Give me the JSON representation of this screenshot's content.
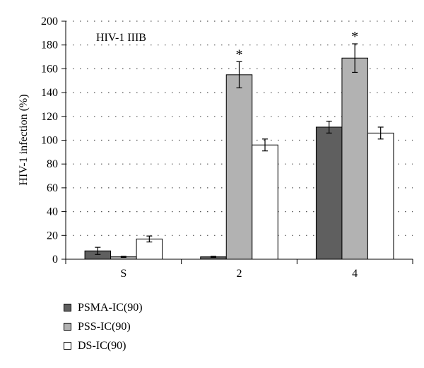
{
  "chart_data": {
    "type": "bar",
    "annotation": "HIV-1 IIIB",
    "ylabel": "HIV-1 infection (%)",
    "xlabel": "",
    "categories": [
      "S",
      "2",
      "4"
    ],
    "ylim": [
      0,
      200
    ],
    "yticks": [
      0,
      20,
      40,
      60,
      80,
      100,
      120,
      140,
      160,
      180,
      200
    ],
    "grid": "horizontal-dotted",
    "legend_position": "bottom-left",
    "significance_marker": "*",
    "series": [
      {
        "name": "PSMA-IC(90)",
        "color": "#5f5f5f",
        "values": [
          7,
          2,
          111
        ],
        "errors": [
          3,
          0.5,
          5
        ]
      },
      {
        "name": "PSS-IC(90)",
        "color": "#b2b2b2",
        "values": [
          2,
          155,
          169
        ],
        "errors": [
          0.5,
          11,
          12
        ]
      },
      {
        "name": "DS-IC(90)",
        "color": "#ffffff",
        "values": [
          17,
          96,
          106
        ],
        "errors": [
          2.5,
          5,
          5
        ]
      }
    ],
    "significant": [
      [
        false,
        false,
        false
      ],
      [
        false,
        true,
        true
      ],
      [
        false,
        false,
        false
      ]
    ]
  }
}
